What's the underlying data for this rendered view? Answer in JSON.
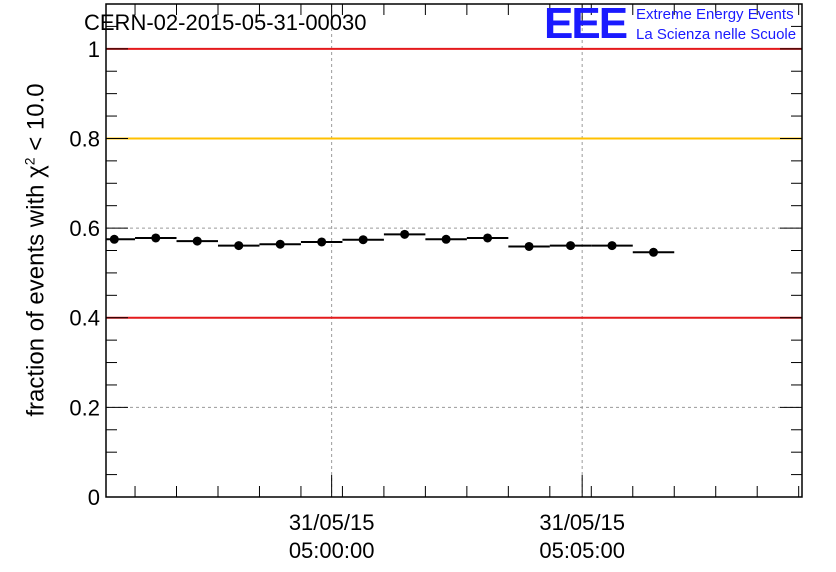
{
  "header": {
    "run_title": "CERN-02-2015-05-31-00030",
    "logo_mark": "EEE",
    "logo_line1": "Extreme Energy Events",
    "logo_line2": "La Scienza nelle Scuole"
  },
  "colors": {
    "logo": "#1a1aff",
    "red_threshold": "#e41a1c",
    "yellow_threshold": "#ffc000",
    "points": "#000000"
  },
  "chart_data": {
    "type": "scatter",
    "title": "CERN-02-2015-05-31-00030",
    "ylabel": "fraction of events with χ² < 10.0",
    "ylabel_parts": {
      "text": "fraction of events with χ",
      "sup": "2",
      "tail": " < 10.0"
    },
    "xlabel": "",
    "ylim": [
      0,
      1.1
    ],
    "y_ticks": [
      "0",
      "0.2",
      "0.4",
      "0.6",
      "0.8",
      "1"
    ],
    "y_tick_values": [
      0,
      0.2,
      0.4,
      0.6,
      0.8,
      1.0
    ],
    "x_tick_labels": [
      {
        "time": "04:59:58",
        "date": "31/05/15",
        "label": "05:00:00"
      },
      {
        "time": "05:05:00",
        "date": "31/05/15",
        "label": "05:05:00"
      }
    ],
    "x_range": [
      "04:55:26",
      "05:09:25"
    ],
    "bin_width_seconds": 50,
    "grid": true,
    "threshold_lines": [
      {
        "y": 1.0,
        "color": "red"
      },
      {
        "y": 0.8,
        "color": "yellow"
      },
      {
        "y": 0.4,
        "color": "red"
      }
    ],
    "points": [
      {
        "x": "04:55:36",
        "y": 0.575
      },
      {
        "x": "04:56:26",
        "y": 0.578
      },
      {
        "x": "04:57:16",
        "y": 0.571
      },
      {
        "x": "04:58:06",
        "y": 0.561
      },
      {
        "x": "04:58:56",
        "y": 0.564
      },
      {
        "x": "04:59:46",
        "y": 0.569
      },
      {
        "x": "05:00:36",
        "y": 0.574
      },
      {
        "x": "05:01:26",
        "y": 0.586
      },
      {
        "x": "05:02:16",
        "y": 0.575
      },
      {
        "x": "05:03:06",
        "y": 0.578
      },
      {
        "x": "05:03:56",
        "y": 0.559
      },
      {
        "x": "05:04:46",
        "y": 0.561
      },
      {
        "x": "05:05:36",
        "y": 0.561
      },
      {
        "x": "05:06:26",
        "y": 0.546
      }
    ]
  }
}
